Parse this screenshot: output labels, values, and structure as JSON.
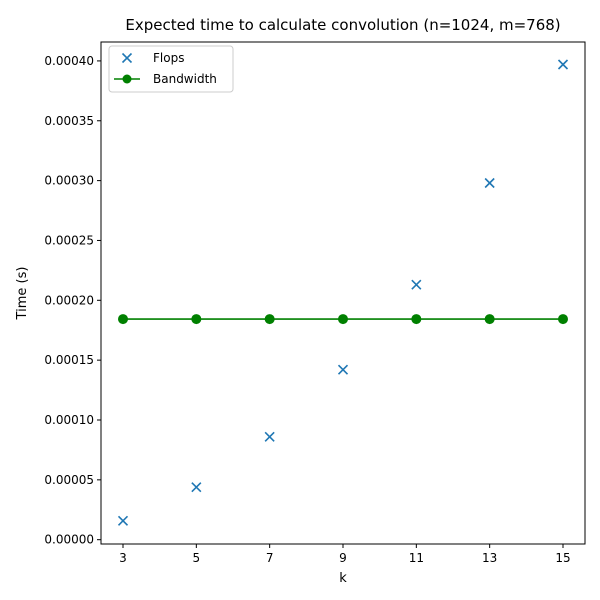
{
  "chart_data": {
    "type": "line",
    "title": "Expected time to calculate convolution (n=1024, m=768)",
    "xlabel": "k",
    "ylabel": "Time (s)",
    "x": [
      3,
      5,
      7,
      9,
      11,
      13,
      15
    ],
    "x_ticks": [
      "3",
      "5",
      "7",
      "9",
      "11",
      "13",
      "15"
    ],
    "y_ticks": [
      "0.00000",
      "0.00005",
      "0.00010",
      "0.00015",
      "0.00020",
      "0.00025",
      "0.00030",
      "0.00035",
      "0.00040"
    ],
    "xlim": [
      2.4,
      15.6
    ],
    "ylim": [
      -3.6e-06,
      0.0004158
    ],
    "grid": false,
    "legend_position": "top-left",
    "series": [
      {
        "name": "Flops",
        "style": "markers",
        "marker": "x",
        "color": "#1f77b4",
        "values": [
          1.58e-05,
          4.39e-05,
          8.6e-05,
          0.000142,
          0.000213,
          0.000298,
          0.000397
        ]
      },
      {
        "name": "Bandwidth",
        "style": "line-markers",
        "marker": "circle",
        "color": "#008000",
        "values": [
          0.0001843,
          0.0001843,
          0.0001843,
          0.0001843,
          0.0001843,
          0.0001843,
          0.0001843
        ]
      }
    ]
  }
}
